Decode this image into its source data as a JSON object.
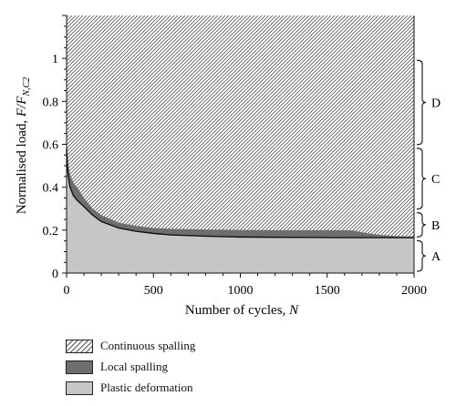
{
  "chart_data": {
    "type": "area",
    "xlabel_main": "Number of cycles, ",
    "xlabel_var": "N",
    "ylabel_main": "Normalised load, ",
    "ylabel_var": "F/F",
    "ylabel_sub": "N,C2",
    "xlim": [
      0,
      2000
    ],
    "ylim": [
      0,
      1.2
    ],
    "x_ticks": [
      0,
      500,
      1000,
      1500,
      2000
    ],
    "y_ticks": [
      0,
      0.2,
      0.4,
      0.6,
      0.8,
      1
    ],
    "x_tick_labels": [
      "0",
      "500",
      "1000",
      "1500",
      "2000"
    ],
    "y_tick_labels": [
      "0",
      "0.2",
      "0.4",
      "0.6",
      "0.8",
      "1"
    ],
    "series": [
      {
        "name": "Plastic deformation",
        "color": "#c6c6c6",
        "x": [
          0,
          5,
          10,
          20,
          40,
          60,
          100,
          150,
          200,
          300,
          400,
          500,
          600,
          800,
          1000,
          1200,
          1400,
          1600,
          1800,
          2000
        ],
        "y": [
          0.58,
          0.5,
          0.45,
          0.4,
          0.36,
          0.34,
          0.31,
          0.27,
          0.24,
          0.21,
          0.195,
          0.185,
          0.178,
          0.172,
          0.168,
          0.167,
          0.166,
          0.165,
          0.165,
          0.165
        ]
      },
      {
        "name": "Local spalling",
        "color": "#6e6e6e",
        "x": [
          0,
          5,
          10,
          20,
          40,
          60,
          100,
          150,
          200,
          300,
          400,
          500,
          600,
          800,
          1000,
          1200,
          1400,
          1600,
          1650,
          1700,
          1800,
          1900,
          2000
        ],
        "y": [
          0.62,
          0.56,
          0.5,
          0.46,
          0.42,
          0.4,
          0.35,
          0.3,
          0.27,
          0.235,
          0.22,
          0.21,
          0.206,
          0.203,
          0.201,
          0.2,
          0.2,
          0.2,
          0.198,
          0.19,
          0.178,
          0.172,
          0.17
        ]
      },
      {
        "name": "Continuous spalling",
        "color": "hatched",
        "y_top": 1.2
      }
    ],
    "regions": [
      {
        "label": "A",
        "from": 0,
        "to": 0.16
      },
      {
        "label": "B",
        "from": 0.16,
        "to": 0.29
      },
      {
        "label": "C",
        "from": 0.29,
        "to": 0.59
      },
      {
        "label": "D",
        "from": 0.59,
        "to": 1.0
      }
    ],
    "legend": [
      {
        "label": "Continuous spalling",
        "swatch": "hatched"
      },
      {
        "label": "Local spalling",
        "swatch": "#6e6e6e"
      },
      {
        "label": "Plastic deformation",
        "swatch": "#c6c6c6"
      }
    ]
  }
}
